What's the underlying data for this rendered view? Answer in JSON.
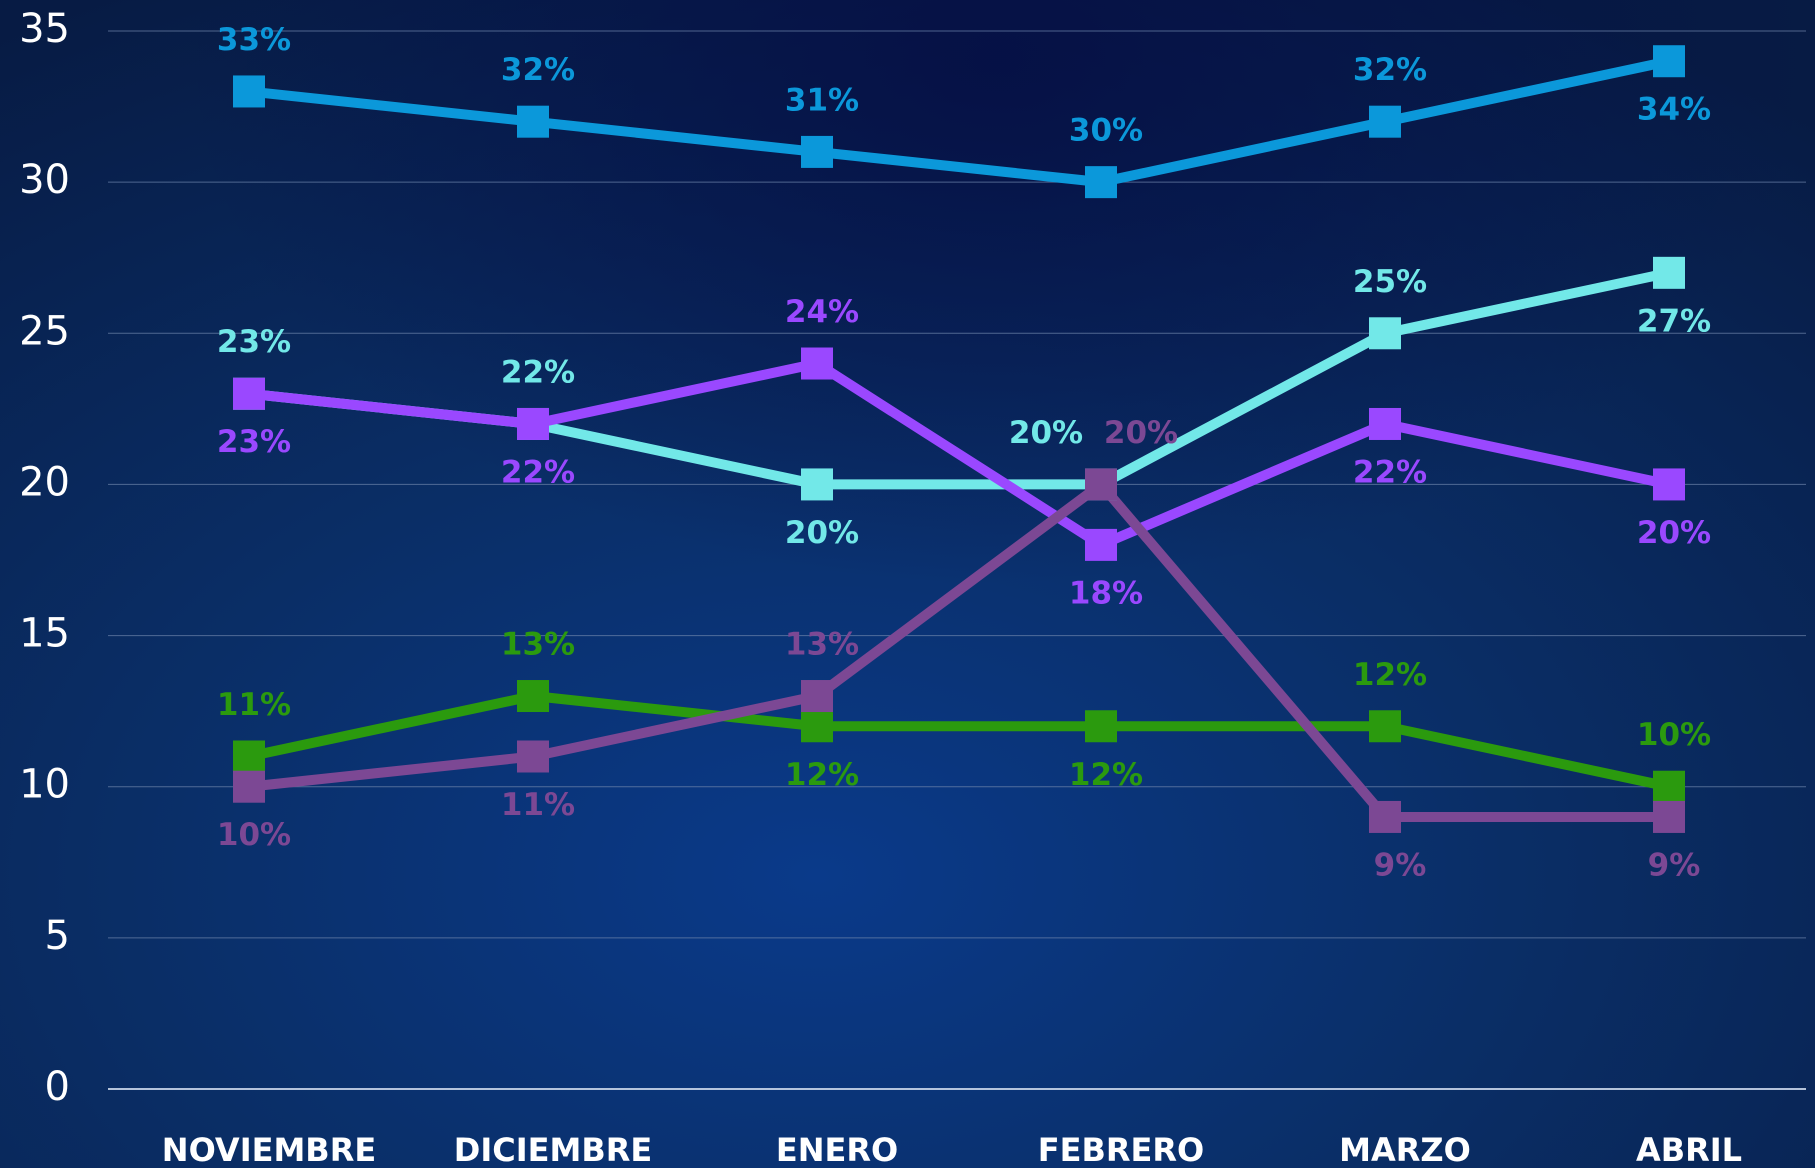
{
  "chart_data": {
    "type": "line",
    "categories": [
      "NOVIEMBRE",
      "DICIEMBRE",
      "ENERO",
      "FEBRERO",
      "MARZO",
      "ABRIL"
    ],
    "ylim": [
      0,
      35
    ],
    "yticks": [
      0,
      5,
      10,
      15,
      20,
      25,
      30,
      35
    ],
    "grid": true,
    "series": [
      {
        "color": "#0b98da",
        "values": [
          33,
          32,
          31,
          30,
          32,
          34
        ],
        "value_labels": [
          "33%",
          "32%",
          "31%",
          "30%",
          "32%",
          "34%"
        ]
      },
      {
        "color": "#72e8e8",
        "values": [
          23,
          22,
          20,
          20,
          25,
          27
        ],
        "value_labels": [
          "23%",
          "22%",
          "20%",
          "20%",
          "25%",
          "27%"
        ]
      },
      {
        "color": "#9a48ff",
        "values": [
          23,
          22,
          24,
          18,
          22,
          20
        ],
        "value_labels": [
          "23%",
          "22%",
          "24%",
          "18%",
          "22%",
          "20%"
        ]
      },
      {
        "color": "#2b9a0e",
        "values": [
          11,
          13,
          12,
          12,
          12,
          10
        ],
        "value_labels": [
          "11%",
          "13%",
          "12%",
          "12%",
          "12%",
          "10%"
        ]
      },
      {
        "color": "#7c4894",
        "values": [
          10,
          11,
          13,
          20,
          9,
          9
        ],
        "value_labels": [
          "10%",
          "11%",
          "13%",
          "20%",
          "9%",
          "9%"
        ]
      }
    ]
  }
}
